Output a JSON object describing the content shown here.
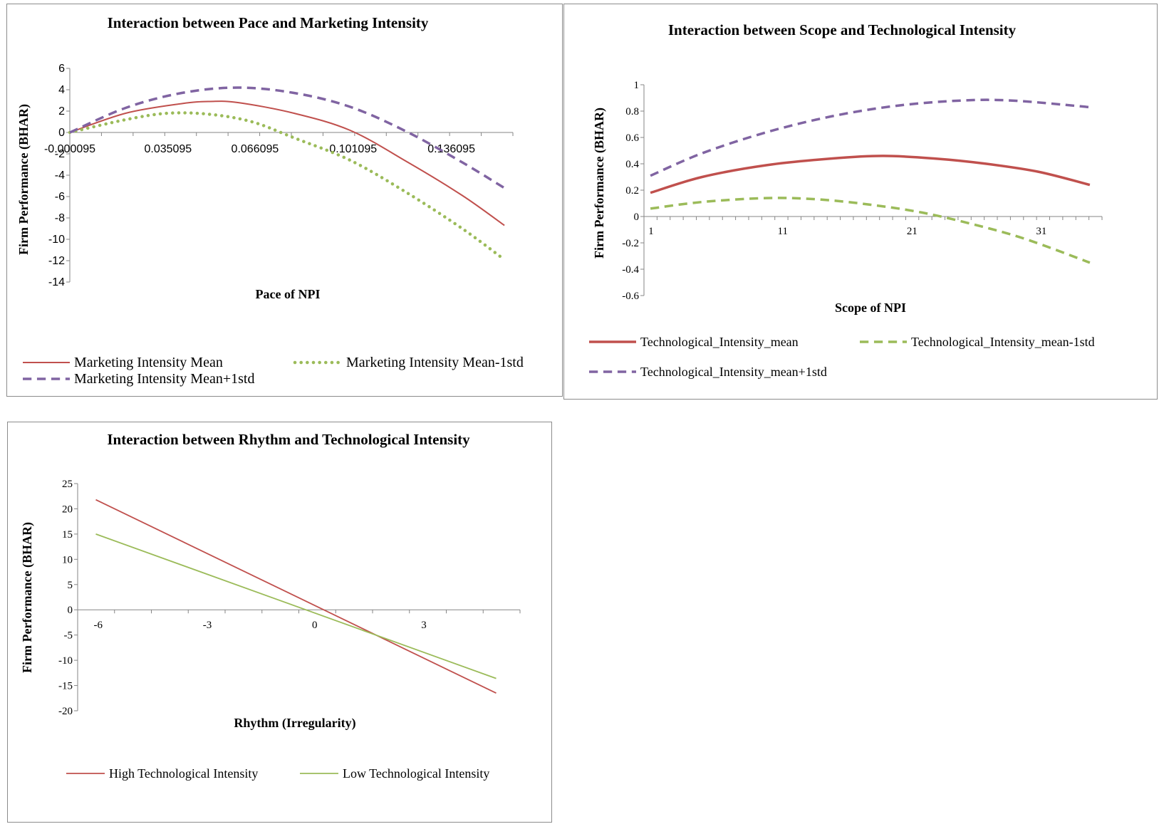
{
  "chart_data": [
    {
      "type": "line",
      "title": "Interaction between Pace and Marketing Intensity",
      "xlabel": "Pace of NPI",
      "ylabel": "Firm Performance (BHAR)",
      "xlim": [
        9.5e-05,
        0.156
      ],
      "ylim": [
        -14,
        6
      ],
      "xticks": [
        "-0.000095",
        "0.035095",
        "0.066095",
        "0.101095",
        "0.136095"
      ],
      "yticks": [
        "6",
        "4",
        "2",
        "0",
        "-2",
        "-4",
        "-6",
        "-8",
        "-10",
        "-12",
        "-14"
      ],
      "legend": "bottom",
      "series": [
        {
          "name": "Marketing Intensity Mean",
          "color": "#c0504d",
          "style": "solid",
          "x": [
            9.5e-05,
            0.02,
            0.04,
            0.05,
            0.06,
            0.08,
            0.1,
            0.12,
            0.14,
            0.155
          ],
          "y": [
            0,
            1.8,
            2.7,
            2.9,
            2.8,
            1.8,
            0.2,
            -2.7,
            -5.9,
            -8.7
          ]
        },
        {
          "name": "Marketing Intensity Mean-1std",
          "color": "#9bbb59",
          "style": "dotted",
          "x": [
            9.5e-05,
            0.02,
            0.035,
            0.05,
            0.065,
            0.08,
            0.1,
            0.12,
            0.14,
            0.155
          ],
          "y": [
            0,
            1.2,
            1.8,
            1.7,
            1.0,
            -0.5,
            -2.6,
            -5.6,
            -9.0,
            -11.9
          ]
        },
        {
          "name": "Marketing Intensity Mean+1std",
          "color": "#8064a2",
          "style": "dashed",
          "x": [
            9.5e-05,
            0.02,
            0.04,
            0.06,
            0.08,
            0.1,
            0.12,
            0.14,
            0.155
          ],
          "y": [
            0,
            2.3,
            3.7,
            4.2,
            3.7,
            2.4,
            0.1,
            -2.8,
            -5.2
          ]
        }
      ]
    },
    {
      "type": "line",
      "title": "Interaction between Scope and Technological Intensity",
      "xlabel": "Scope of NPI",
      "ylabel": "Firm Performance (BHAR)",
      "xlim": [
        0.5,
        35.5
      ],
      "ylim": [
        -0.6,
        1
      ],
      "xticks": [
        "1",
        "11",
        "21",
        "31"
      ],
      "yticks": [
        "1",
        "0.8",
        "0.6",
        "0.4",
        "0.2",
        "0",
        "-0.2",
        "-0.4",
        "-0.6"
      ],
      "legend": "bottom",
      "series": [
        {
          "name": "Technological_Intensity_mean",
          "color": "#c0504d",
          "style": "solid",
          "x": [
            1,
            5,
            10,
            15,
            19,
            23,
            27,
            31,
            35
          ],
          "y": [
            0.18,
            0.3,
            0.39,
            0.44,
            0.46,
            0.44,
            0.4,
            0.34,
            0.24
          ]
        },
        {
          "name": "Technological_Intensity_mean-1std",
          "color": "#9bbb59",
          "style": "dashed",
          "x": [
            1,
            5,
            10,
            14,
            18,
            22,
            26,
            30,
            35
          ],
          "y": [
            0.06,
            0.11,
            0.14,
            0.13,
            0.09,
            0.03,
            -0.06,
            -0.17,
            -0.35
          ]
        },
        {
          "name": "Technological_Intensity_mean+1std",
          "color": "#8064a2",
          "style": "dashed",
          "x": [
            1,
            5,
            10,
            15,
            20,
            25,
            29,
            35
          ],
          "y": [
            0.31,
            0.48,
            0.64,
            0.76,
            0.84,
            0.88,
            0.88,
            0.83
          ]
        }
      ]
    },
    {
      "type": "line",
      "title": "Interaction between Rhythm and Technological Intensity",
      "xlabel": "Rhythm (Irregularity)",
      "ylabel": "Firm Performance (BHAR)",
      "xlim": [
        -6.5,
        5.5
      ],
      "ylim": [
        -20,
        25
      ],
      "xticks": [
        "-6",
        "-3",
        "0",
        "3"
      ],
      "yticks": [
        "25",
        "20",
        "15",
        "10",
        "5",
        "0",
        "-5",
        "-10",
        "-15",
        "-20"
      ],
      "legend": "bottom",
      "series": [
        {
          "name": "High Technological Intensity",
          "color": "#c0504d",
          "style": "solid",
          "x": [
            -6,
            5
          ],
          "y": [
            21.8,
            -16.5
          ]
        },
        {
          "name": "Low Technological Intensity",
          "color": "#9bbb59",
          "style": "solid",
          "x": [
            -6,
            5
          ],
          "y": [
            15,
            -13.6
          ]
        }
      ]
    }
  ]
}
